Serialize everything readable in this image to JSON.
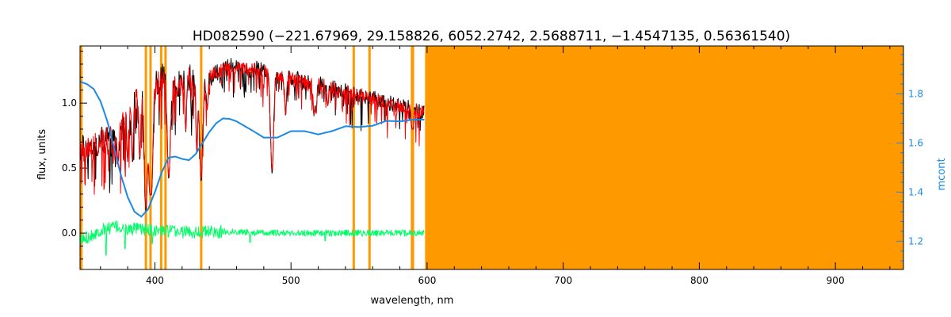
{
  "chart_data": {
    "type": "line",
    "title": "HD082590   (−221.67969, 29.158826, 6052.2742, 2.5688711, −1.4547135, 0.56361540)",
    "xlabel": "wavelength, nm",
    "ylabel": "flux, units",
    "y2label": "mcont",
    "xlim": [
      345,
      950
    ],
    "ylim": [
      -0.28,
      1.44
    ],
    "y2lim": [
      1.085,
      1.995
    ],
    "xticks": [
      400,
      500,
      600,
      700,
      800,
      900
    ],
    "yticks": [
      0.0,
      0.5,
      1.0
    ],
    "y2ticks": [
      1.2,
      1.4,
      1.6,
      1.8
    ],
    "x_minor_step": 20,
    "y_minor_step": 0.1,
    "y2_minor_step": 0.04,
    "masked_lines_nm": [
      346.0,
      393.4,
      396.8,
      404.6,
      407.8,
      434.0,
      546.1,
      557.7,
      588.9,
      589.6
    ],
    "masked_region_nm": [
      598.5,
      950
    ],
    "colors": {
      "observed": "#000000",
      "model": "#ff0000",
      "residual": "#00ff66",
      "continuum": "#1a8ae5",
      "mask": "#ff9900"
    },
    "series": [
      {
        "name": "observed",
        "axis": "left",
        "x": [
          345,
          350,
          355,
          360,
          365,
          370,
          375,
          380,
          385,
          390,
          395,
          400,
          405,
          410,
          415,
          420,
          425,
          430,
          435,
          440,
          445,
          450,
          455,
          460,
          465,
          470,
          475,
          480,
          485,
          490,
          495,
          500,
          510,
          520,
          530,
          540,
          550,
          560,
          570,
          580,
          590,
          598
        ],
        "y": [
          0.66,
          0.64,
          0.68,
          0.72,
          0.73,
          0.74,
          0.8,
          0.95,
          1.02,
          1.05,
          1.07,
          1.14,
          1.22,
          1.14,
          1.12,
          1.18,
          1.2,
          1.14,
          1.16,
          1.2,
          1.24,
          1.27,
          1.29,
          1.28,
          1.26,
          1.25,
          1.27,
          1.25,
          1.24,
          1.21,
          1.2,
          1.2,
          1.17,
          1.15,
          1.12,
          1.09,
          1.07,
          1.04,
          1.01,
          0.98,
          0.96,
          0.93
        ],
        "absorption": [
          [
            358.0,
            0.6
          ],
          [
            373.0,
            0.55
          ],
          [
            380.0,
            0.55
          ],
          [
            383.5,
            0.55
          ],
          [
            388.9,
            0.55
          ],
          [
            393.4,
            0.17
          ],
          [
            396.8,
            0.18
          ],
          [
            397.0,
            0.3
          ],
          [
            410.2,
            0.42
          ],
          [
            422.7,
            0.78
          ],
          [
            430.8,
            0.62
          ],
          [
            434.0,
            0.4
          ],
          [
            438.4,
            0.95
          ],
          [
            486.1,
            0.46
          ],
          [
            496.0,
            0.9
          ],
          [
            516.9,
            0.9
          ],
          [
            518.4,
            0.92
          ],
          [
            527.0,
            0.98
          ],
          [
            589.0,
            0.8
          ],
          [
            589.6,
            0.8
          ]
        ]
      },
      {
        "name": "model",
        "axis": "left",
        "x": [
          345,
          350,
          355,
          360,
          365,
          370,
          375,
          380,
          385,
          390,
          395,
          400,
          405,
          410,
          415,
          420,
          425,
          430,
          435,
          440,
          445,
          450,
          455,
          460,
          465,
          470,
          475,
          480,
          485,
          490,
          495,
          500,
          510,
          520,
          530,
          540,
          550,
          560,
          570,
          580,
          590,
          598
        ],
        "y": [
          0.66,
          0.64,
          0.68,
          0.72,
          0.73,
          0.74,
          0.8,
          0.95,
          1.02,
          1.05,
          1.07,
          1.14,
          1.19,
          1.14,
          1.12,
          1.18,
          1.2,
          1.14,
          1.16,
          1.2,
          1.24,
          1.27,
          1.27,
          1.27,
          1.26,
          1.25,
          1.27,
          1.25,
          1.24,
          1.21,
          1.2,
          1.2,
          1.17,
          1.15,
          1.12,
          1.09,
          1.07,
          1.04,
          1.01,
          0.98,
          0.96,
          0.93
        ]
      },
      {
        "name": "residual",
        "axis": "left",
        "x": [
          345,
          350,
          360,
          370,
          380,
          390,
          400,
          420,
          440,
          460,
          480,
          500,
          520,
          540,
          560,
          580,
          598
        ],
        "y": [
          -0.06,
          -0.03,
          0.02,
          0.05,
          0.03,
          0.03,
          0.02,
          0.01,
          0.01,
          0.01,
          0.0,
          0.0,
          0.0,
          0.0,
          0.0,
          0.0,
          0.0
        ],
        "spikes": [
          [
            364.0,
            -0.17
          ],
          [
            378.0,
            -0.12
          ],
          [
            398.0,
            -0.08
          ],
          [
            470.0,
            -0.07
          ],
          [
            525.0,
            -0.06
          ]
        ]
      },
      {
        "name": "continuum",
        "axis": "right",
        "x": [
          345,
          350,
          355,
          360,
          365,
          370,
          375,
          380,
          385,
          390,
          395,
          400,
          405,
          410,
          415,
          420,
          425,
          430,
          435,
          440,
          445,
          450,
          455,
          460,
          470,
          480,
          490,
          500,
          510,
          520,
          530,
          540,
          550,
          560,
          570,
          580,
          590,
          598
        ],
        "y": [
          1.85,
          1.84,
          1.82,
          1.77,
          1.69,
          1.58,
          1.47,
          1.38,
          1.32,
          1.3,
          1.33,
          1.4,
          1.48,
          1.54,
          1.545,
          1.535,
          1.53,
          1.555,
          1.6,
          1.645,
          1.68,
          1.7,
          1.698,
          1.688,
          1.656,
          1.622,
          1.622,
          1.648,
          1.648,
          1.635,
          1.648,
          1.668,
          1.665,
          1.67,
          1.69,
          1.688,
          1.695,
          1.695
        ]
      }
    ]
  }
}
